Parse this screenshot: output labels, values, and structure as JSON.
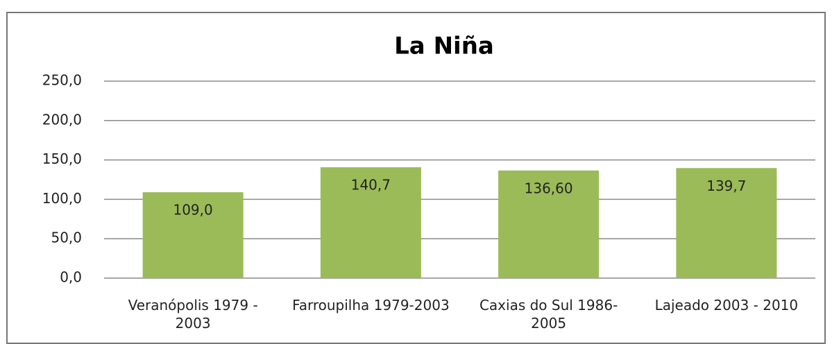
{
  "chart_data": {
    "type": "bar",
    "title": "La Niña",
    "categories": [
      "Veranópolis 1979 - 2003",
      "Farroupilha 1979-2003",
      "Caxias do Sul 1986-2005",
      "Lajeado 2003 - 2010"
    ],
    "values": [
      109.0,
      140.7,
      136.6,
      139.7
    ],
    "value_labels": [
      "109,0",
      "140,7",
      "136,60",
      "139,7"
    ],
    "color": "#9bbb59",
    "ylim": [
      0,
      250
    ],
    "yticks": [
      {
        "value": 0,
        "label": "0,0"
      },
      {
        "value": 50,
        "label": "50,0"
      },
      {
        "value": 100,
        "label": "100,0"
      },
      {
        "value": 150,
        "label": "150,0"
      },
      {
        "value": 200,
        "label": "200,0"
      },
      {
        "value": 250,
        "label": "250,0"
      }
    ],
    "grid": true
  }
}
